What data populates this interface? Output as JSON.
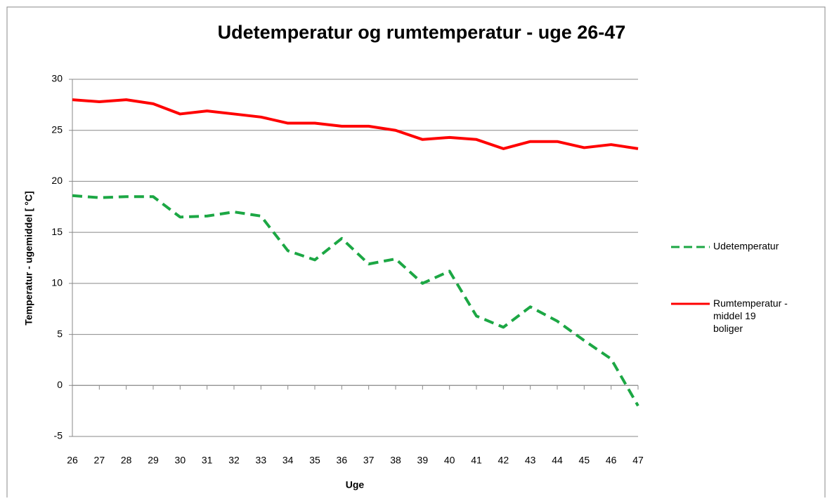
{
  "chart_data": {
    "type": "line",
    "title": "Udetemperatur og rumtemperatur - uge 26-47",
    "x_label": "Uge",
    "y_label": "Temperatur - ugemiddel [ °C]",
    "categories": [
      "26",
      "27",
      "28",
      "29",
      "30",
      "31",
      "32",
      "33",
      "34",
      "35",
      "36",
      "37",
      "38",
      "39",
      "40",
      "41",
      "42",
      "43",
      "44",
      "45",
      "46",
      "47"
    ],
    "series": [
      {
        "name": "Udetemperatur",
        "color": "#1ca744",
        "dash": true,
        "values": [
          18.6,
          18.4,
          18.5,
          18.5,
          16.5,
          16.6,
          17.0,
          16.6,
          13.2,
          12.3,
          14.4,
          11.9,
          12.4,
          10.0,
          11.2,
          6.8,
          5.7,
          7.7,
          6.3,
          4.4,
          2.6,
          -2.0
        ]
      },
      {
        "name": "Rumtemperatur - middel 19 boliger",
        "color": "#ff0000",
        "dash": false,
        "values": [
          28.0,
          27.8,
          28.0,
          27.6,
          26.6,
          26.9,
          26.6,
          26.3,
          25.7,
          25.7,
          25.4,
          25.4,
          25.0,
          24.1,
          24.3,
          24.1,
          23.2,
          23.9,
          23.9,
          23.3,
          23.6,
          23.2
        ]
      }
    ],
    "ylim": [
      -5,
      30
    ],
    "yticks": [
      -5,
      0,
      5,
      10,
      15,
      20,
      25,
      30
    ],
    "grid": true,
    "legend": "right"
  }
}
